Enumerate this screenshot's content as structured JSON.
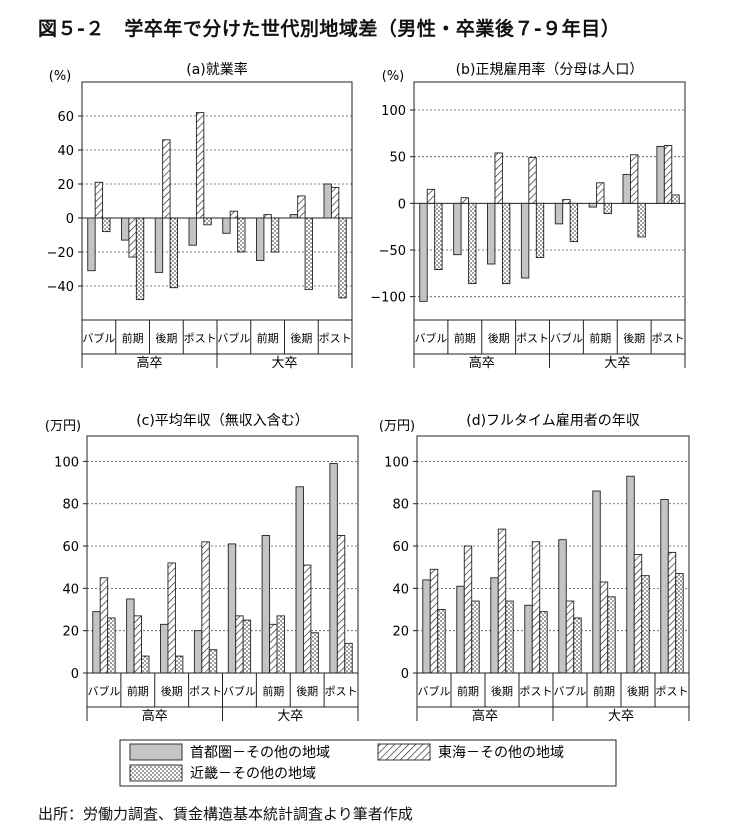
{
  "figure": {
    "title": "図５-２　学卒年で分けた世代別地域差（男性・卒業後７-９年目）",
    "source": "出所：労働力調査、賃金構造基本統計調査より筆者作成"
  },
  "legend": {
    "items": [
      {
        "label": "首都圏－その他の地域",
        "pattern": "gray"
      },
      {
        "label": "東海－その他の地域",
        "pattern": "hatch"
      },
      {
        "label": "近畿－その他の地域",
        "pattern": "dots"
      }
    ]
  },
  "colors": {
    "gray": "#c4c4c4",
    "axis": "#222222",
    "grid": "#555555"
  },
  "chart_data": [
    {
      "id": "a",
      "type": "bar",
      "title": "(a)就業率",
      "yunit": "(%)",
      "ylim": [
        -60,
        80
      ],
      "yticks": [
        -40,
        -20,
        0,
        20,
        40,
        60
      ],
      "grid": "dashed",
      "tick_labels": [
        "−40",
        "−20",
        "0",
        "20",
        "40",
        "60"
      ],
      "categories": [
        "バブル",
        "前期",
        "後期",
        "ポスト",
        "バブル",
        "前期",
        "後期",
        "ポスト"
      ],
      "groups": [
        "高卒",
        "大卒"
      ],
      "series": [
        {
          "name": "首都圏－その他の地域",
          "values": [
            -31,
            -13,
            -32,
            -16,
            -9,
            -25,
            2,
            20
          ]
        },
        {
          "name": "東海－その他の地域",
          "values": [
            21,
            -23,
            46,
            62,
            4,
            2,
            13,
            18
          ]
        },
        {
          "name": "近畿－その他の地域",
          "values": [
            -8,
            -48,
            -41,
            -4,
            -20,
            -20,
            -42,
            -47
          ]
        }
      ]
    },
    {
      "id": "b",
      "type": "bar",
      "title": "(b)正規雇用率（分母は人口）",
      "yunit": "(%)",
      "ylim": [
        -125,
        130
      ],
      "yticks": [
        -100,
        -50,
        0,
        50,
        100
      ],
      "grid": "dashed",
      "tick_labels": [
        "−100",
        "−50",
        "0",
        "50",
        "100"
      ],
      "categories": [
        "バブル",
        "前期",
        "後期",
        "ポスト",
        "バブル",
        "前期",
        "後期",
        "ポスト"
      ],
      "groups": [
        "高卒",
        "大卒"
      ],
      "series": [
        {
          "name": "首都圏－その他の地域",
          "values": [
            -105,
            -55,
            -65,
            -80,
            -22,
            -4,
            31,
            61
          ]
        },
        {
          "name": "東海－その他の地域",
          "values": [
            15,
            6,
            54,
            49,
            4,
            22,
            52,
            62
          ]
        },
        {
          "name": "近畿－その他の地域",
          "values": [
            -71,
            -86,
            -86,
            -58,
            -41,
            -11,
            -36,
            9
          ]
        }
      ]
    },
    {
      "id": "c",
      "type": "bar",
      "title": "(c)平均年収（無収入含む）",
      "yunit": "(万円)",
      "ylim": [
        0,
        112
      ],
      "yticks": [
        0,
        20,
        40,
        60,
        80,
        100
      ],
      "grid": "dashed",
      "tick_labels": [
        "0",
        "20",
        "40",
        "60",
        "80",
        "100"
      ],
      "categories": [
        "バブル",
        "前期",
        "後期",
        "ポスト",
        "バブル",
        "前期",
        "後期",
        "ポスト"
      ],
      "groups": [
        "高卒",
        "大卒"
      ],
      "series": [
        {
          "name": "首都圏－その他の地域",
          "values": [
            29,
            35,
            23,
            20,
            61,
            65,
            88,
            99
          ]
        },
        {
          "name": "東海－その他の地域",
          "values": [
            45,
            27,
            52,
            62,
            27,
            23,
            51,
            65
          ]
        },
        {
          "name": "近畿－その他の地域",
          "values": [
            26,
            8,
            8,
            11,
            25,
            27,
            19,
            14
          ]
        }
      ]
    },
    {
      "id": "d",
      "type": "bar",
      "title": "(d)フルタイム雇用者の年収",
      "yunit": "(万円)",
      "ylim": [
        0,
        112
      ],
      "yticks": [
        0,
        20,
        40,
        60,
        80,
        100
      ],
      "grid": "dashed",
      "tick_labels": [
        "0",
        "20",
        "40",
        "60",
        "80",
        "100"
      ],
      "categories": [
        "バブル",
        "前期",
        "後期",
        "ポスト",
        "バブル",
        "前期",
        "後期",
        "ポスト"
      ],
      "groups": [
        "高卒",
        "大卒"
      ],
      "series": [
        {
          "name": "首都圏－その他の地域",
          "values": [
            44,
            41,
            45,
            32,
            63,
            86,
            93,
            82
          ]
        },
        {
          "name": "東海－その他の地域",
          "values": [
            49,
            60,
            68,
            62,
            34,
            43,
            56,
            57
          ]
        },
        {
          "name": "近畿－その他の地域",
          "values": [
            30,
            34,
            34,
            29,
            26,
            36,
            46,
            47
          ]
        }
      ]
    }
  ]
}
